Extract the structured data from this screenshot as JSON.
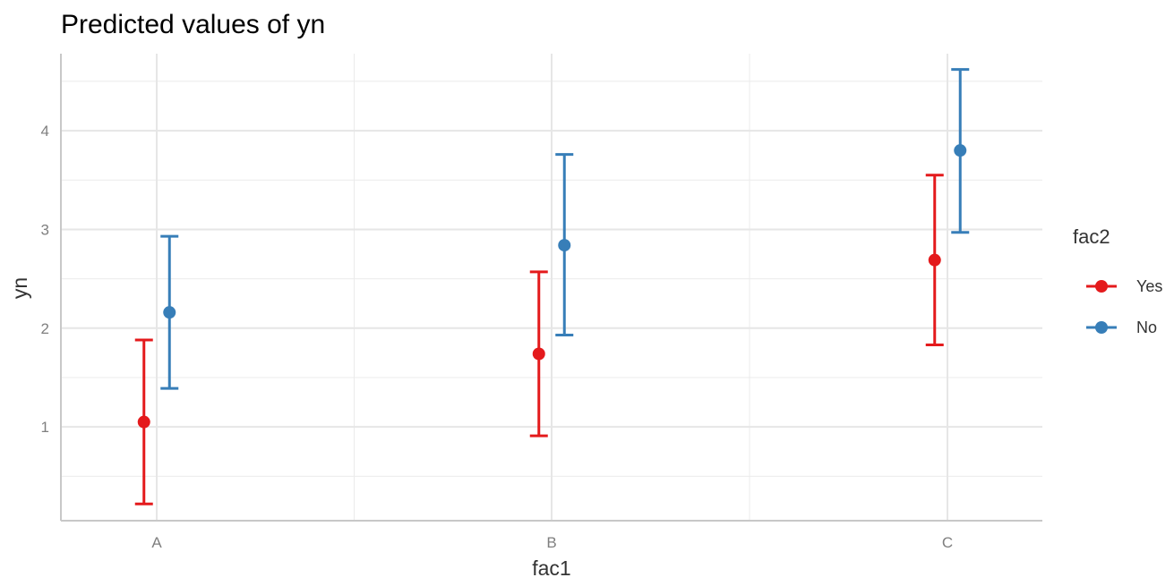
{
  "chart_data": {
    "type": "scatter",
    "subtype": "point-with-errorbars (dodged)",
    "title": "Predicted values of yn",
    "xlabel": "fac1",
    "ylabel": "yn",
    "categories": [
      "A",
      "B",
      "C"
    ],
    "y_ticks": [
      1,
      2,
      3,
      4
    ],
    "ylim": [
      0.05,
      4.78
    ],
    "grid": true,
    "legend": {
      "title": "fac2",
      "position": "right"
    },
    "series": [
      {
        "name": "Yes",
        "color": "#E41A1C",
        "values": [
          1.05,
          1.74,
          2.69
        ],
        "lower": [
          0.22,
          0.91,
          1.83
        ],
        "upper": [
          1.88,
          2.57,
          3.55
        ]
      },
      {
        "name": "No",
        "color": "#377EB8",
        "values": [
          2.16,
          2.84,
          3.8
        ],
        "lower": [
          1.39,
          1.93,
          2.97
        ],
        "upper": [
          2.93,
          3.76,
          4.62
        ]
      }
    ]
  }
}
